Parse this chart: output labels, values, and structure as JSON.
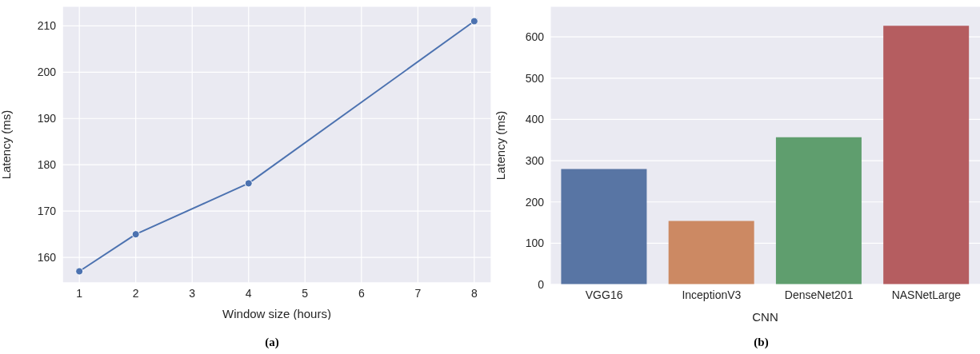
{
  "chart_data": [
    {
      "type": "line",
      "xlabel": "Window size (hours)",
      "ylabel": "Latency (ms)",
      "x": [
        1,
        2,
        4,
        8
      ],
      "values": [
        157,
        165,
        176,
        211
      ],
      "color": "#4c72b0",
      "marker": "circle",
      "line_style": "solid",
      "xlim": [
        0.7,
        8.3
      ],
      "xticks": [
        1,
        2,
        3,
        4,
        5,
        6,
        7,
        8
      ],
      "ylim": [
        154.5,
        214.2
      ],
      "yticks": [
        160,
        170,
        180,
        190,
        200,
        210
      ],
      "grid": true,
      "legend": false,
      "annotations": [
        "(a)"
      ]
    },
    {
      "type": "bar",
      "xlabel": "CNN",
      "ylabel": "Latency (ms)",
      "categories": [
        "VGG16",
        "InceptionV3",
        "DenseNet201",
        "NASNetLarge"
      ],
      "values": [
        280,
        154,
        357,
        627
      ],
      "colors": [
        "#5875a4",
        "#cc8963",
        "#5f9e6e",
        "#b55d60"
      ],
      "ylim": [
        0,
        674
      ],
      "yticks": [
        0,
        100,
        200,
        300,
        400,
        500,
        600
      ],
      "grid": "y",
      "legend": false,
      "annotations": [
        "(b)"
      ]
    }
  ]
}
